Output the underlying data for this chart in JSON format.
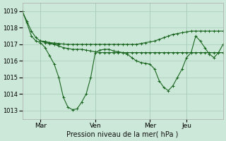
{
  "background_color": "#cce8d8",
  "grid_color": "#aaccbb",
  "line_color": "#1a6620",
  "title": "Pression niveau de la mer( hPa )",
  "ylim": [
    1012.5,
    1019.5
  ],
  "yticks": [
    1013,
    1014,
    1015,
    1016,
    1017,
    1018,
    1019
  ],
  "xtick_labels": [
    "Mar",
    "Ven",
    "Mer",
    "Jeu"
  ],
  "xtick_positions": [
    24,
    96,
    168,
    216
  ],
  "xlim": [
    0,
    264
  ],
  "series1_x": [
    0,
    6,
    12,
    18,
    24,
    30,
    36,
    42,
    48
  ],
  "series1_y": [
    1019.0,
    1018.4,
    1017.8,
    1017.4,
    1017.2,
    1017.1,
    1017.05,
    1017.0,
    1017.0
  ],
  "series2_x": [
    0,
    6,
    12,
    18,
    24,
    30,
    36,
    42,
    48,
    54,
    60,
    66,
    72,
    78,
    84,
    90,
    96,
    102,
    108,
    114,
    120,
    126,
    132,
    138,
    144,
    150,
    156,
    162,
    168,
    174,
    180,
    186,
    192,
    198,
    204,
    210,
    216,
    222,
    228,
    234,
    240,
    246,
    252,
    258,
    264
  ],
  "series2_y": [
    1019.0,
    1018.3,
    1017.5,
    1017.2,
    1017.1,
    1016.8,
    1016.3,
    1015.8,
    1015.0,
    1013.8,
    1013.2,
    1013.05,
    1013.1,
    1013.5,
    1014.0,
    1015.0,
    1016.5,
    1016.65,
    1016.7,
    1016.7,
    1016.6,
    1016.55,
    1016.5,
    1016.4,
    1016.2,
    1016.0,
    1015.9,
    1015.85,
    1015.8,
    1015.5,
    1014.8,
    1014.4,
    1014.2,
    1014.5,
    1015.0,
    1015.5,
    1016.2,
    1016.5,
    1017.5,
    1017.2,
    1016.8,
    1016.4,
    1016.2,
    1016.5,
    1017.0
  ],
  "series3_x": [
    24,
    30,
    36,
    42,
    48,
    54,
    60,
    66,
    72,
    78,
    84,
    90,
    96,
    102,
    108,
    114,
    120,
    126,
    132,
    138,
    144,
    150,
    156,
    162,
    168,
    174,
    180,
    186,
    192,
    198,
    204,
    210,
    216,
    222,
    228,
    234,
    240,
    246,
    252,
    258,
    264
  ],
  "series3_y": [
    1017.2,
    1017.18,
    1017.1,
    1017.08,
    1017.05,
    1017.02,
    1017.0,
    1017.0,
    1017.0,
    1017.0,
    1017.0,
    1017.0,
    1017.0,
    1017.0,
    1017.0,
    1017.0,
    1017.0,
    1017.0,
    1017.0,
    1017.0,
    1017.0,
    1017.0,
    1017.05,
    1017.1,
    1017.15,
    1017.2,
    1017.3,
    1017.4,
    1017.5,
    1017.6,
    1017.65,
    1017.7,
    1017.75,
    1017.8,
    1017.8,
    1017.8,
    1017.8,
    1017.8,
    1017.8,
    1017.8,
    1017.8
  ],
  "series4_x": [
    24,
    30,
    36,
    42,
    48,
    54,
    60,
    66,
    72,
    78,
    84,
    90,
    96,
    102,
    108,
    114,
    120,
    126,
    132,
    138,
    144,
    150,
    156,
    162,
    168,
    174,
    180,
    186,
    192,
    198,
    204,
    210,
    216,
    222,
    228,
    234,
    240,
    246,
    252,
    258,
    264
  ],
  "series4_y": [
    1017.2,
    1017.15,
    1017.1,
    1017.0,
    1016.9,
    1016.8,
    1016.75,
    1016.7,
    1016.7,
    1016.7,
    1016.65,
    1016.6,
    1016.55,
    1016.5,
    1016.5,
    1016.5,
    1016.5,
    1016.5,
    1016.5,
    1016.5,
    1016.5,
    1016.5,
    1016.5,
    1016.5,
    1016.5,
    1016.5,
    1016.5,
    1016.5,
    1016.5,
    1016.5,
    1016.5,
    1016.5,
    1016.5,
    1016.5,
    1016.5,
    1016.5,
    1016.5,
    1016.5,
    1016.5,
    1016.5,
    1016.5
  ]
}
